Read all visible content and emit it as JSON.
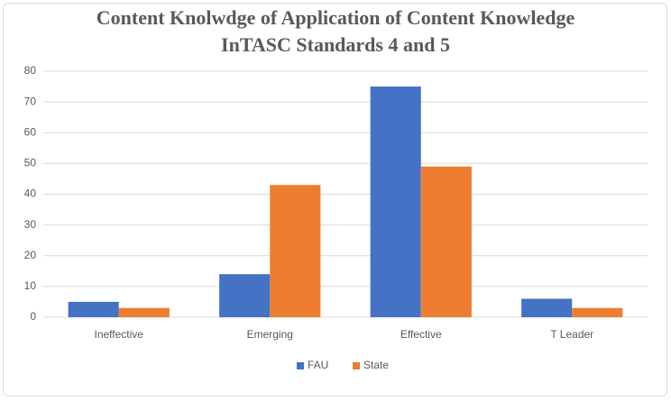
{
  "chart_data": {
    "type": "bar",
    "title": [
      "Content Knolwdge of Application of Content Knowledge",
      "InTASC Standards 4 and 5"
    ],
    "categories": [
      "Ineffective",
      "Emerging",
      "Effective",
      "T Leader"
    ],
    "series": [
      {
        "name": "FAU",
        "color": "#4472c4",
        "values": [
          5,
          14,
          75,
          6
        ]
      },
      {
        "name": "State",
        "color": "#ed7d31",
        "values": [
          3,
          43,
          49,
          3
        ]
      }
    ],
    "ylim": [
      0,
      80
    ],
    "yticks": [
      0,
      10,
      20,
      30,
      40,
      50,
      60,
      70,
      80
    ],
    "grid": true,
    "legend": "bottom"
  }
}
